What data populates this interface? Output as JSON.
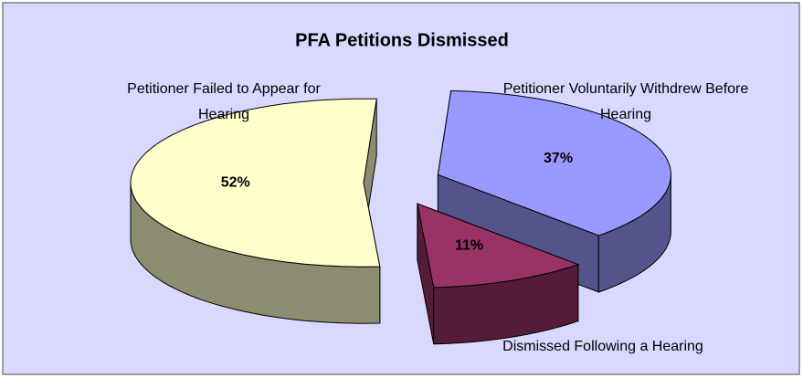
{
  "chart_data": {
    "type": "pie3d",
    "title": "PFA Petitions Dismissed",
    "categories": [
      "Petitioner Failed to Appear for Hearing",
      "Petitioner Voluntarily Withdrew Before Hearing",
      "Dismissed Following a Hearing"
    ],
    "values": [
      52,
      37,
      11
    ],
    "value_labels": [
      "52%",
      "37%",
      "11%"
    ],
    "colors": [
      "#ffffcc",
      "#9999ff",
      "#993366"
    ]
  }
}
